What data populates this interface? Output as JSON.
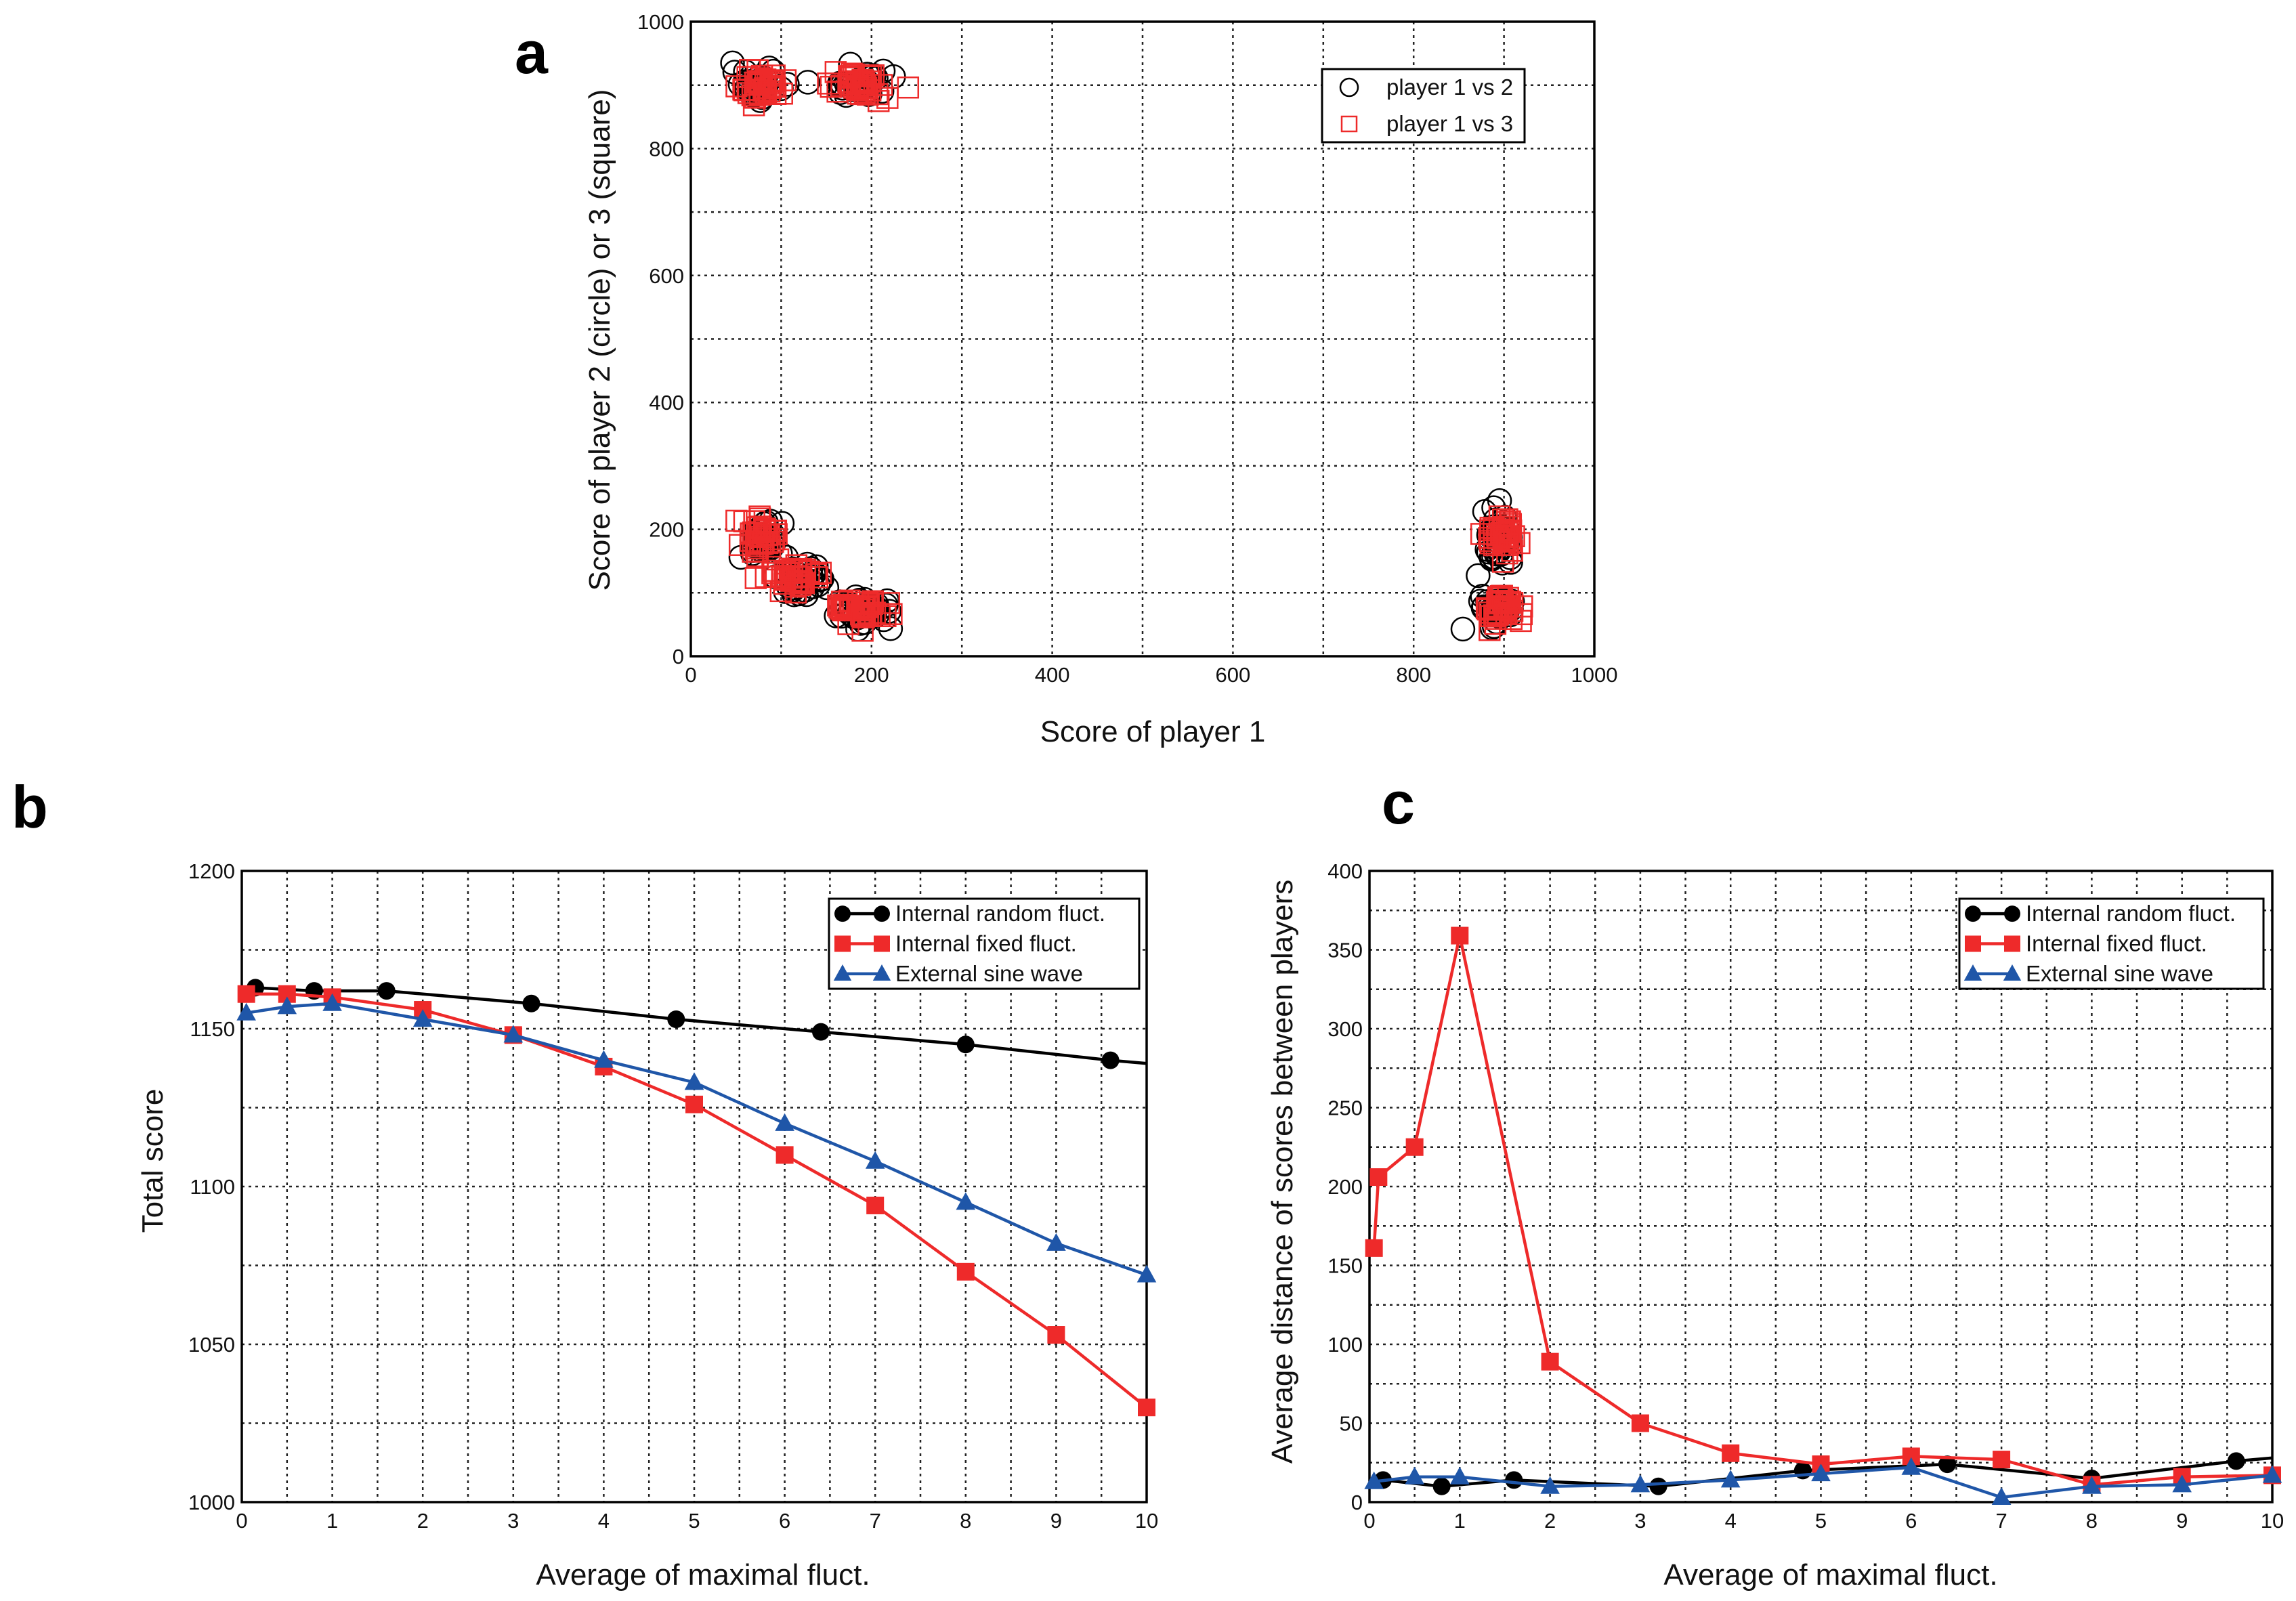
{
  "chart_data": [
    {
      "panel": "a",
      "type": "scatter",
      "xlabel": "Score of player 1",
      "ylabel": "Score of player 2 (circle) or 3 (square)",
      "xlim": [
        0,
        1000
      ],
      "ylim": [
        0,
        1000
      ],
      "xticks": [
        0,
        200,
        400,
        600,
        800,
        1000
      ],
      "yticks": [
        0,
        200,
        400,
        600,
        800,
        1000
      ],
      "grid": true,
      "legend_position": "top-right",
      "series": [
        {
          "name": "player 1 vs 2",
          "marker": "circle",
          "color": "#000000",
          "clusters": [
            [
              75,
              900,
              14,
              12
            ],
            [
              185,
              900,
              16,
              10
            ],
            [
              78,
              180,
              12,
              16
            ],
            [
              125,
              120,
              14,
              14
            ],
            [
              195,
              72,
              15,
              12
            ],
            [
              893,
              190,
              8,
              18
            ],
            [
              893,
              72,
              9,
              12
            ]
          ]
        },
        {
          "name": "player 1 vs 3",
          "marker": "square",
          "color": "#ee2a2a",
          "clusters": [
            [
              78,
              900,
              14,
              12
            ],
            [
              190,
              898,
              16,
              10
            ],
            [
              75,
              188,
              14,
              16
            ],
            [
              115,
              125,
              14,
              12
            ],
            [
              190,
              72,
              16,
              10
            ],
            [
              897,
              192,
              9,
              18
            ],
            [
              897,
              78,
              10,
              14
            ]
          ]
        }
      ]
    },
    {
      "panel": "b",
      "type": "line",
      "xlabel": "Average of maximal  fluct.",
      "ylabel": "Total score",
      "xlim": [
        0,
        10
      ],
      "ylim": [
        1000,
        1200
      ],
      "xticks": [
        0,
        1,
        2,
        3,
        4,
        5,
        6,
        7,
        8,
        9,
        10
      ],
      "yticks": [
        1000,
        1050,
        1100,
        1150,
        1200
      ],
      "grid": true,
      "legend_position": "top-right",
      "series": [
        {
          "name": "Internal random fluct.",
          "marker": "circle",
          "color": "#000000",
          "x": [
            0.15,
            0.8,
            1.6,
            3.2,
            4.8,
            6.4,
            8.0,
            9.6
          ],
          "y": [
            1163,
            1162,
            1162,
            1158,
            1153,
            1149,
            1145,
            1140
          ],
          "line_end": [
            10,
            1139
          ]
        },
        {
          "name": "Internal fixed fluct.",
          "marker": "square",
          "color": "#ee2a2a",
          "x": [
            0.05,
            0.5,
            1,
            2,
            3,
            4,
            5,
            6,
            7,
            8,
            9,
            10
          ],
          "y": [
            1161,
            1161,
            1160,
            1156,
            1148,
            1138,
            1126,
            1110,
            1094,
            1073,
            1053,
            1030
          ]
        },
        {
          "name": "External sine wave",
          "marker": "triangle",
          "color": "#1f56a8",
          "x": [
            0.05,
            0.5,
            1,
            2,
            3,
            4,
            5,
            6,
            7,
            8,
            9,
            10
          ],
          "y": [
            1155,
            1157,
            1158,
            1153,
            1148,
            1140,
            1133,
            1120,
            1108,
            1095,
            1082,
            1072
          ]
        }
      ]
    },
    {
      "panel": "c",
      "type": "line",
      "xlabel": "Average of maximal fluct.",
      "ylabel": "Average distance of scores between players",
      "xlim": [
        0,
        10
      ],
      "ylim": [
        0,
        400
      ],
      "xticks": [
        0,
        1,
        2,
        3,
        4,
        5,
        6,
        7,
        8,
        9,
        10
      ],
      "yticks": [
        0,
        50,
        100,
        150,
        200,
        250,
        300,
        350,
        400
      ],
      "grid": true,
      "legend_position": "top-right",
      "series": [
        {
          "name": "Internal random fluct.",
          "marker": "circle",
          "color": "#000000",
          "x": [
            0.15,
            0.8,
            1.6,
            3.2,
            4.8,
            6.4,
            8.0,
            9.6
          ],
          "y": [
            14,
            10,
            14,
            10,
            20,
            24,
            15,
            26
          ],
          "line_end": [
            10,
            28
          ]
        },
        {
          "name": "Internal fixed fluct.",
          "marker": "square",
          "color": "#ee2a2a",
          "x": [
            0.05,
            0.1,
            0.5,
            1,
            2,
            3,
            4,
            5,
            6,
            7,
            8,
            9,
            10
          ],
          "y": [
            161,
            206,
            225,
            359,
            89,
            50,
            31,
            24,
            29,
            27,
            11,
            16,
            17
          ]
        },
        {
          "name": "External sine wave",
          "marker": "triangle",
          "color": "#1f56a8",
          "x": [
            0.05,
            0.5,
            1,
            2,
            3,
            4,
            5,
            6,
            7,
            8,
            9,
            10
          ],
          "y": [
            13,
            16,
            16,
            10,
            11,
            14,
            18,
            22,
            3,
            10,
            11,
            17
          ]
        }
      ]
    }
  ]
}
